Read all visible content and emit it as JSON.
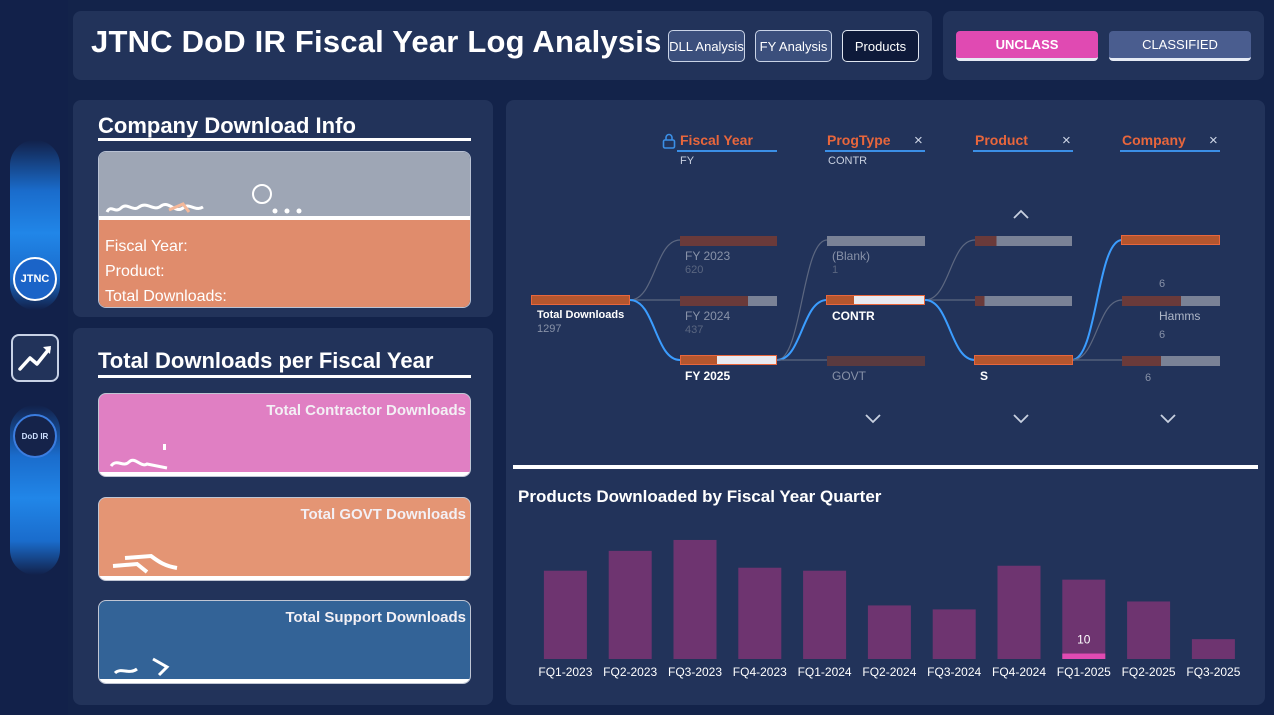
{
  "header": {
    "title": "JTNC DoD IR Fiscal Year Log Analysis",
    "nav": [
      "DLL Analysis",
      "FY Analysis",
      "Products"
    ],
    "classification": [
      "UNCLASS",
      "CLASSIFIED"
    ]
  },
  "rail": {
    "jtnc_label": "JTNC",
    "dod_label": "DoD IR"
  },
  "company_info": {
    "title": "Company Download Info",
    "fiscal_year_label": "Fiscal Year:",
    "product_label": "Product:",
    "downloads_label": "Total Downloads:"
  },
  "fy_totals": {
    "title": "Total Downloads per Fiscal Year",
    "contractor_label": "Total Contractor Downloads",
    "govt_label": "Total GOVT Downloads",
    "support_label": "Total Support Downloads"
  },
  "decomp": {
    "root": {
      "label": "Total Downloads",
      "value": "1297"
    },
    "levels": [
      {
        "header": "Fiscal Year",
        "sub": "FY",
        "nodes": [
          {
            "label": "FY 2023",
            "value": "620"
          },
          {
            "label": "FY 2024",
            "value": "437"
          },
          {
            "label": "FY 2025",
            "value": ""
          }
        ]
      },
      {
        "header": "ProgType",
        "sub": "CONTR",
        "nodes": [
          {
            "label": "(Blank)",
            "value": "1"
          },
          {
            "label": "CONTR",
            "value": ""
          },
          {
            "label": "GOVT",
            "value": ""
          }
        ]
      },
      {
        "header": "Product",
        "sub": "",
        "nodes": [
          {
            "label": "",
            "value": ""
          },
          {
            "label": "",
            "value": ""
          },
          {
            "label": "S",
            "value": ""
          }
        ]
      },
      {
        "header": "Company",
        "sub": "",
        "nodes": [
          {
            "label": "",
            "value": "6"
          },
          {
            "label": "Hamms",
            "value": "6"
          },
          {
            "label": "",
            "value": "6"
          }
        ]
      }
    ]
  },
  "colors": {
    "background": "#13234a",
    "panel": "#22335a",
    "accent_orange": "#e8663c",
    "accent_pink": "#e04ab2",
    "bar_purple": "#6e3470",
    "highlight_pink": "#e04ab2"
  },
  "chart_data": {
    "type": "bar",
    "title": "Products Downloaded by Fiscal Year Quarter",
    "categories": [
      "FQ1-2023",
      "FQ2-2023",
      "FQ3-2023",
      "FQ4-2023",
      "FQ1-2024",
      "FQ2-2024",
      "FQ3-2024",
      "FQ4-2024",
      "FQ1-2025",
      "FQ2-2025",
      "FQ3-2025"
    ],
    "values": [
      89,
      109,
      120,
      92,
      89,
      54,
      50,
      94,
      80,
      58,
      20
    ],
    "highlight": {
      "category": "FQ1-2025",
      "value": 10,
      "label": "10"
    },
    "xlabel": "",
    "ylabel": "",
    "ylim": [
      0,
      125
    ],
    "grid": false
  }
}
